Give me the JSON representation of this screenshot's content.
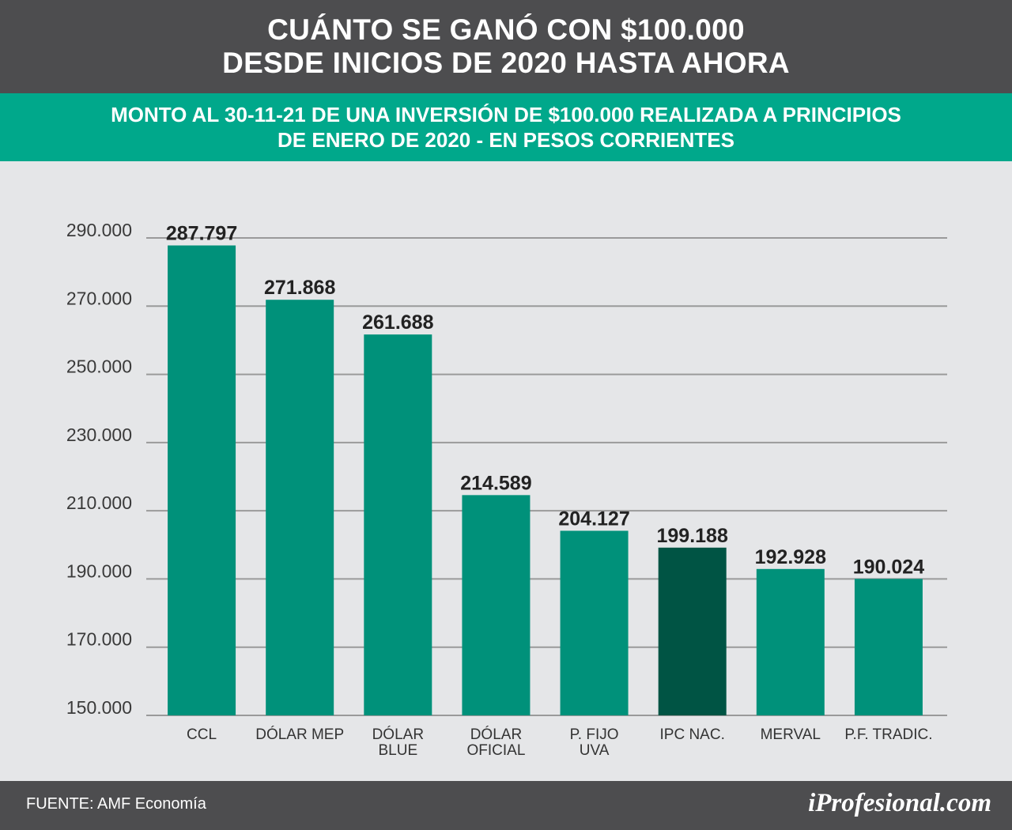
{
  "header": {
    "title_line1": "CUÁNTO SE GANÓ CON $100.000",
    "title_line2": "DESDE INICIOS DE 2020 HASTA AHORA"
  },
  "subheader": {
    "line1": "MONTO AL 30-11-21 DE UNA INVERSIÓN DE $100.000 REALIZADA A PRINCIPIOS",
    "line2": "DE ENERO DE 2020 - EN PESOS CORRIENTES"
  },
  "colors": {
    "bar": "#00917a",
    "bar_highlight": "#005444",
    "grid": "#9a9a9a",
    "header_bg": "#4d4d4f",
    "subheader_bg": "#00a88b"
  },
  "chart_data": {
    "type": "bar",
    "categories": [
      [
        "CCL"
      ],
      [
        "DÓLAR MEP"
      ],
      [
        "DÓLAR",
        "BLUE"
      ],
      [
        "DÓLAR",
        "OFICIAL"
      ],
      [
        "P. FIJO",
        "UVA"
      ],
      [
        "IPC NAC."
      ],
      [
        "MERVAL"
      ],
      [
        "P.F. TRADIC."
      ]
    ],
    "values": [
      287797,
      271868,
      261688,
      214589,
      204127,
      199188,
      192928,
      190024
    ],
    "value_labels": [
      "287.797",
      "271.868",
      "261.688",
      "214.589",
      "204.127",
      "199.188",
      "192.928",
      "190.024"
    ],
    "highlight_index": 5,
    "y_ticks": [
      150000,
      170000,
      190000,
      210000,
      230000,
      250000,
      270000,
      290000
    ],
    "y_tick_labels": [
      "150.000",
      "170.000",
      "190.000",
      "210.000",
      "230.000",
      "250.000",
      "270.000",
      "290.000"
    ],
    "ylim": [
      150000,
      290000
    ],
    "grid": true,
    "legend": "none"
  },
  "footer": {
    "source": "FUENTE: AMF Economía",
    "brand": "iProfesional.com"
  }
}
